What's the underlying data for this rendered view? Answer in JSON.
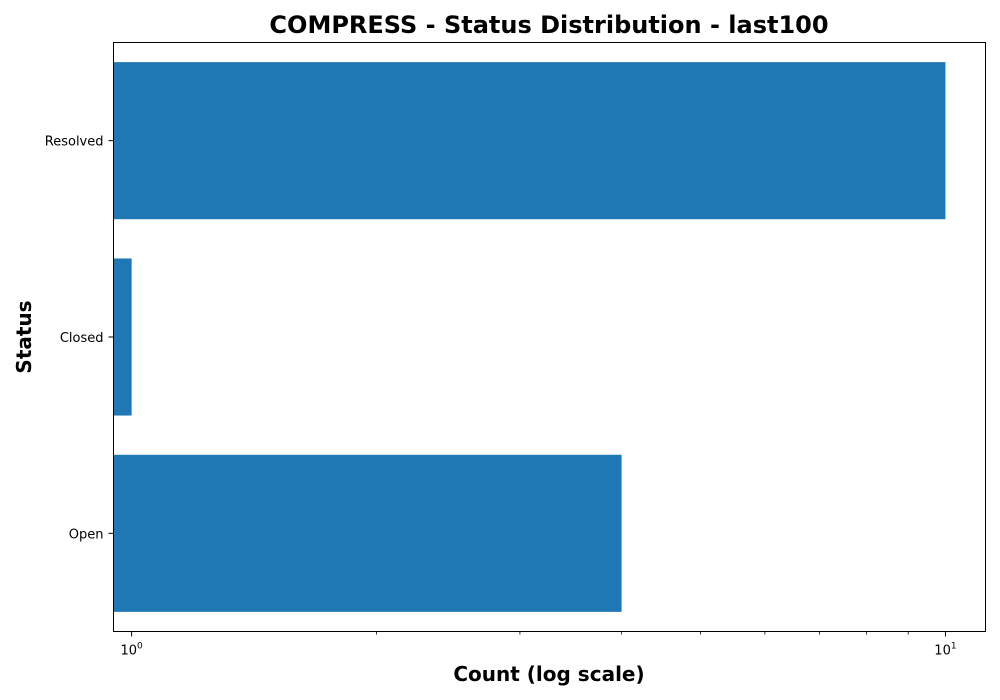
{
  "chart_data": {
    "type": "bar",
    "orientation": "horizontal",
    "title": "COMPRESS - Status Distribution - last100",
    "xlabel": "Count (log scale)",
    "ylabel": "Status",
    "x_scale": "log",
    "xlim": [
      0.95,
      11.2
    ],
    "x_ticks": [
      {
        "value": 1,
        "base": "10",
        "exponent": "0"
      },
      {
        "value": 10,
        "base": "10",
        "exponent": "1"
      }
    ],
    "categories": [
      "Resolved",
      "Closed",
      "Open"
    ],
    "values": [
      10,
      1,
      4
    ],
    "bar_color": "#1f77b4",
    "grid": false,
    "legend": "none"
  }
}
